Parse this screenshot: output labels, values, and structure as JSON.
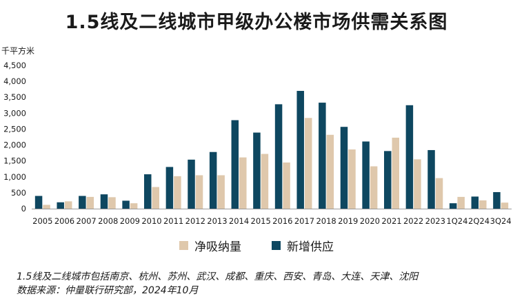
{
  "title": "1.5线及二线城市甲级办公楼市场供需关系图",
  "chart_data": {
    "type": "bar",
    "ylabel": "千平方米",
    "ylim": [
      0,
      4500
    ],
    "yticks": [
      "0",
      "500",
      "1,000",
      "1,500",
      "2,000",
      "2,500",
      "3,000",
      "3,500",
      "4,000",
      "4,500"
    ],
    "categories": [
      "2005",
      "2006",
      "2007",
      "2008",
      "2009",
      "2010",
      "2011",
      "2012",
      "2013",
      "2014",
      "2015",
      "2016",
      "2017",
      "2018",
      "2019",
      "2020",
      "2021",
      "2022",
      "2023",
      "1Q24",
      "2Q24",
      "3Q24"
    ],
    "series": [
      {
        "name": "净吸纳量",
        "color": "#dfc8ac",
        "values": [
          120,
          230,
          370,
          360,
          170,
          680,
          1020,
          1050,
          1050,
          1610,
          1720,
          1450,
          2850,
          2320,
          1860,
          1330,
          2230,
          1550,
          960,
          370,
          260,
          190
        ]
      },
      {
        "name": "新增供应",
        "color": "#0e4760",
        "values": [
          400,
          200,
          400,
          450,
          250,
          1080,
          1310,
          1540,
          1780,
          2780,
          2390,
          3280,
          3700,
          3330,
          2570,
          2110,
          1810,
          3250,
          1840,
          170,
          380,
          520
        ]
      }
    ],
    "legend_position": "bottom",
    "grid": false
  },
  "notes": {
    "cities": "1.5线及二线城市包括南京、杭州、苏州、武汉、成都、重庆、西安、青岛、大连、天津、沈阳",
    "source": "数据来源：仲量联行研究部，2024年10月"
  }
}
